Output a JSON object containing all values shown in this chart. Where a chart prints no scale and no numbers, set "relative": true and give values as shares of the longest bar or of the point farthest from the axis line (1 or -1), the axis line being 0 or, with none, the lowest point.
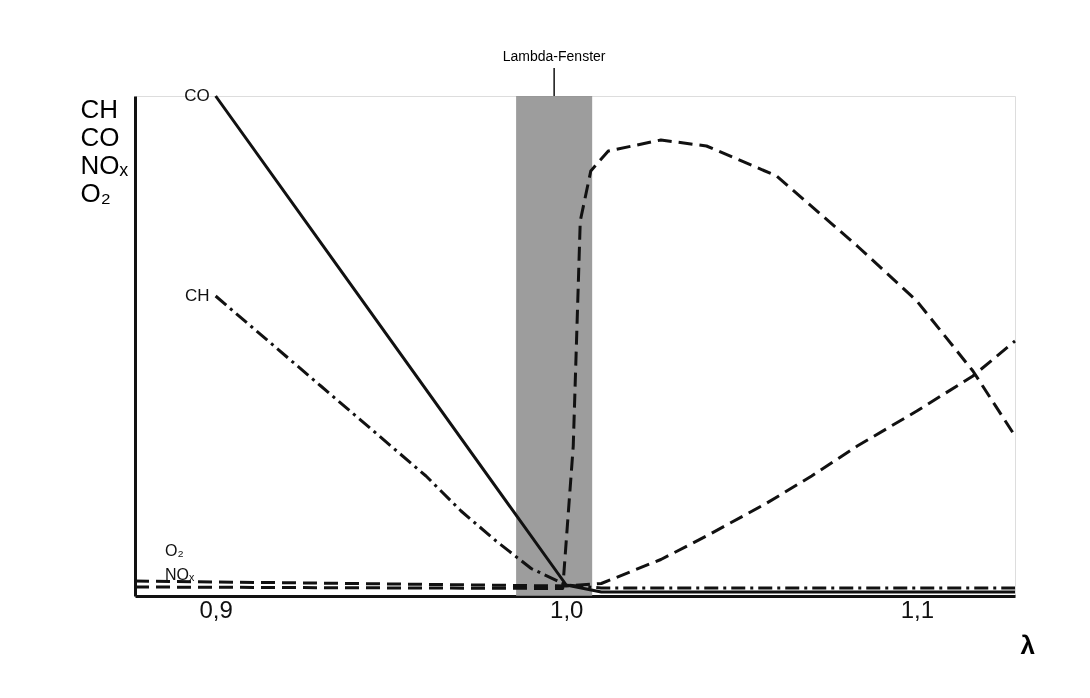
{
  "chart_data": {
    "type": "line",
    "relative": true,
    "xlabel": "λ",
    "ylabel": "CH\nCO\nNOₓ\nO₂",
    "xlim": [
      0.877,
      1.128
    ],
    "xticks": [
      {
        "value": 0.9,
        "label": "0,9"
      },
      {
        "value": 1.0,
        "label": "1,0"
      },
      {
        "value": 1.1,
        "label": "1,1"
      }
    ],
    "grid": false,
    "legend": false,
    "marker": "none",
    "bands": [
      {
        "axis": "x",
        "from": 0.9857,
        "to": 1.0074,
        "label": "Lambda-Fenster",
        "color": "#8c8c8c"
      }
    ],
    "series": [
      {
        "name": "CO",
        "color": "#111111",
        "line_style": "solid",
        "x": [
          0.9,
          1.0,
          1.01,
          1.128
        ],
        "values": [
          1.0,
          0.022,
          0.008,
          0.008
        ]
      },
      {
        "name": "CH",
        "color": "#111111",
        "line_style": "dashdot",
        "x": [
          0.9,
          0.91,
          0.92,
          0.93,
          0.94,
          0.95,
          0.96,
          0.97,
          0.98,
          0.99,
          1.0,
          1.01,
          1.128
        ],
        "values": [
          0.6,
          0.54,
          0.48,
          0.42,
          0.36,
          0.3,
          0.24,
          0.17,
          0.11,
          0.055,
          0.022,
          0.016,
          0.016
        ]
      },
      {
        "name": "O₂",
        "color": "#111111",
        "line_style": "dashed",
        "x": [
          0.877,
          1.0,
          1.01,
          1.027,
          1.04,
          1.057,
          1.07,
          1.083,
          1.1,
          1.116,
          1.128
        ],
        "values": [
          0.03,
          0.02,
          0.025,
          0.073,
          0.12,
          0.185,
          0.24,
          0.3,
          0.37,
          0.44,
          0.51
        ]
      },
      {
        "name": "NOₓ",
        "color": "#111111",
        "line_style": "dashed",
        "x": [
          0.877,
          0.999,
          1.002,
          1.004,
          1.007,
          1.012,
          1.027,
          1.04,
          1.06,
          1.083,
          1.1,
          1.116,
          1.128
        ],
        "values": [
          0.018,
          0.015,
          0.3,
          0.75,
          0.85,
          0.89,
          0.912,
          0.9,
          0.84,
          0.7,
          0.59,
          0.45,
          0.32
        ]
      }
    ]
  }
}
